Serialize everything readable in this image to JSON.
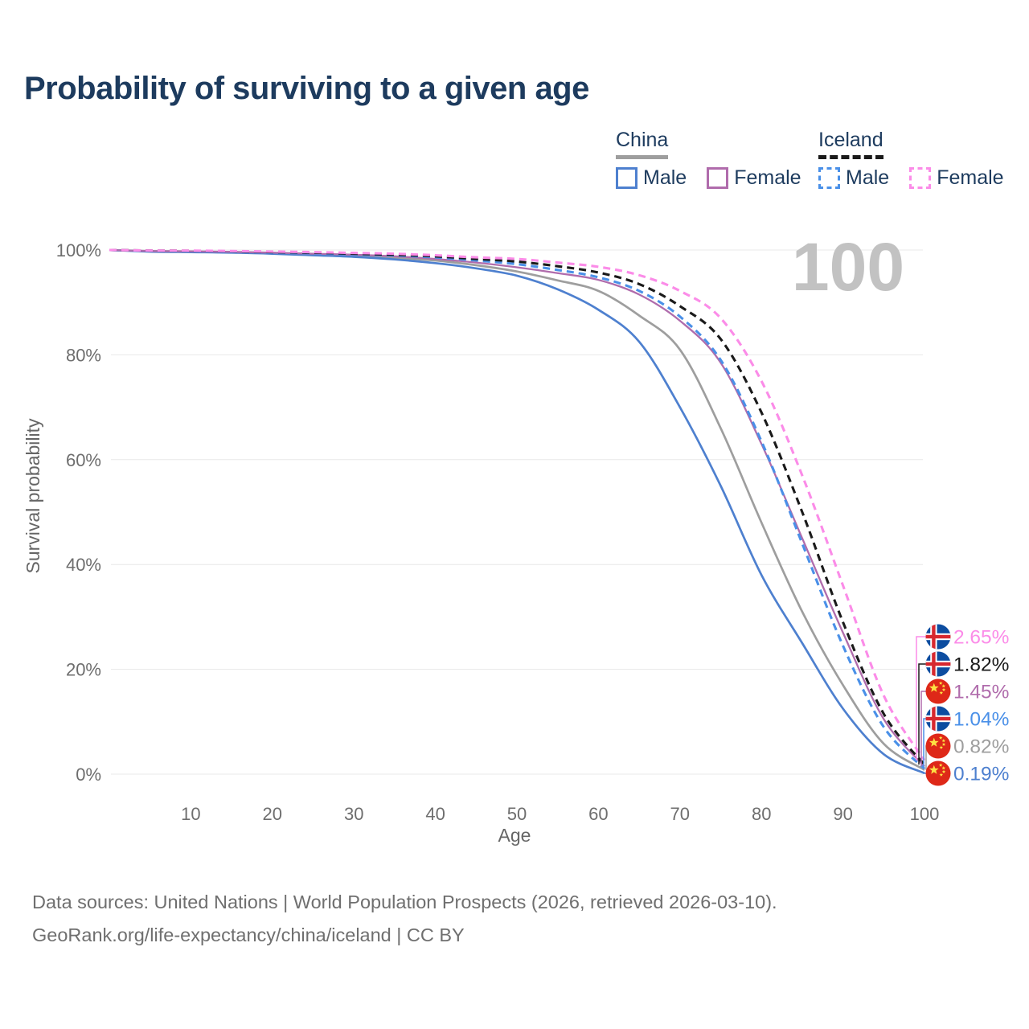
{
  "title": "Probability of surviving to a given age",
  "watermark_age": "100",
  "legend": {
    "groups": [
      {
        "name": "China",
        "line_style": "solid",
        "total_series": "china-total",
        "items": [
          {
            "label": "Male",
            "series": "china-male"
          },
          {
            "label": "Female",
            "series": "china-female"
          }
        ]
      },
      {
        "name": "Iceland",
        "line_style": "dashed",
        "total_series": "iceland-total",
        "items": [
          {
            "label": "Male",
            "series": "iceland-male"
          },
          {
            "label": "Female",
            "series": "iceland-female"
          }
        ]
      }
    ]
  },
  "axes": {
    "y_label": "Survival probability",
    "x_label": "Age"
  },
  "footer": {
    "line1": "Data sources: United Nations | World Population Prospects (2026, retrieved 2026-03-10).",
    "line2": "GeoRank.org/life-expectancy/china/iceland | CC BY"
  },
  "chart_data": {
    "type": "line",
    "title": "Probability of surviving to a given age",
    "xlabel": "Age",
    "ylabel": "Survival probability",
    "xlim": [
      0,
      100
    ],
    "ylim": [
      0,
      100
    ],
    "grid": true,
    "legend_position": "top-right",
    "x_ticks": [
      {
        "value": 10,
        "label": "10"
      },
      {
        "value": 20,
        "label": "20"
      },
      {
        "value": 30,
        "label": "30"
      },
      {
        "value": 40,
        "label": "40"
      },
      {
        "value": 50,
        "label": "50"
      },
      {
        "value": 60,
        "label": "60"
      },
      {
        "value": 70,
        "label": "70"
      },
      {
        "value": 80,
        "label": "80"
      },
      {
        "value": 90,
        "label": "90"
      },
      {
        "value": 100,
        "label": "100"
      }
    ],
    "y_ticks": [
      {
        "value": 0,
        "label": "0%"
      },
      {
        "value": 20,
        "label": "20%"
      },
      {
        "value": 40,
        "label": "40%"
      },
      {
        "value": 60,
        "label": "60%"
      },
      {
        "value": 80,
        "label": "80%"
      },
      {
        "value": 100,
        "label": "100%"
      }
    ],
    "x": [
      0,
      5,
      10,
      15,
      20,
      25,
      30,
      35,
      40,
      45,
      50,
      55,
      60,
      65,
      70,
      75,
      80,
      85,
      90,
      95,
      100
    ],
    "series": [
      {
        "id": "china-total",
        "name": "China Total",
        "country": "china",
        "color": "#9e9e9e",
        "dash": false,
        "end_label": "0.82%",
        "values": [
          100,
          99.8,
          99.7,
          99.6,
          99.4,
          99.2,
          98.9,
          98.5,
          98.0,
          97.1,
          95.9,
          94.2,
          92.2,
          87.5,
          81,
          66,
          48,
          31,
          17,
          5.8,
          0.82
        ]
      },
      {
        "id": "china-male",
        "name": "China Male",
        "country": "china",
        "color": "#4e80cf",
        "dash": false,
        "end_label": "0.19%",
        "values": [
          100,
          99.7,
          99.6,
          99.5,
          99.3,
          99.0,
          98.7,
          98.2,
          97.5,
          96.5,
          95.1,
          92.5,
          88.6,
          82.5,
          70,
          55,
          38,
          25,
          12.5,
          3.8,
          0.19
        ]
      },
      {
        "id": "china-female",
        "name": "China Female",
        "country": "china",
        "color": "#b06cac",
        "dash": false,
        "end_label": "1.45%",
        "values": [
          100,
          99.8,
          99.75,
          99.65,
          99.5,
          99.3,
          99.1,
          98.8,
          98.3,
          97.6,
          96.7,
          95.6,
          94.3,
          91.5,
          86.5,
          78.5,
          63,
          45,
          27,
          10.5,
          1.45
        ]
      },
      {
        "id": "iceland-male",
        "name": "Iceland Male",
        "country": "iceland",
        "color": "#4a90e8",
        "dash": true,
        "end_label": "1.04%",
        "values": [
          100,
          99.85,
          99.8,
          99.7,
          99.55,
          99.4,
          99.2,
          98.95,
          98.6,
          98.0,
          97.3,
          96.2,
          94.8,
          92.2,
          87.3,
          79,
          63.5,
          44,
          24.5,
          9,
          1.04
        ]
      },
      {
        "id": "iceland-total",
        "name": "Iceland Total",
        "country": "iceland",
        "color": "#1a1a1a",
        "dash": true,
        "end_label": "1.82%",
        "values": [
          100,
          99.9,
          99.85,
          99.75,
          99.6,
          99.5,
          99.3,
          99.1,
          98.8,
          98.3,
          97.8,
          96.9,
          95.7,
          93.5,
          89.3,
          83,
          69,
          50,
          29,
          11.5,
          1.82
        ]
      },
      {
        "id": "iceland-female",
        "name": "Iceland Female",
        "country": "iceland",
        "color": "#fb8ce8",
        "dash": true,
        "end_label": "2.65%",
        "values": [
          100,
          99.9,
          99.88,
          99.8,
          99.7,
          99.6,
          99.45,
          99.3,
          99.0,
          98.6,
          98.3,
          97.6,
          96.8,
          95.2,
          92.2,
          87,
          75,
          57,
          36,
          15,
          2.65
        ]
      }
    ],
    "flag_colors": {
      "china_red": "#de2818",
      "china_star": "#fde243",
      "iceland_blue": "#0d4da0",
      "iceland_red": "#d7282f",
      "iceland_white": "#ffffff"
    },
    "grid_color": "#e8e8e8",
    "tick_color": "#6e6e6e"
  }
}
